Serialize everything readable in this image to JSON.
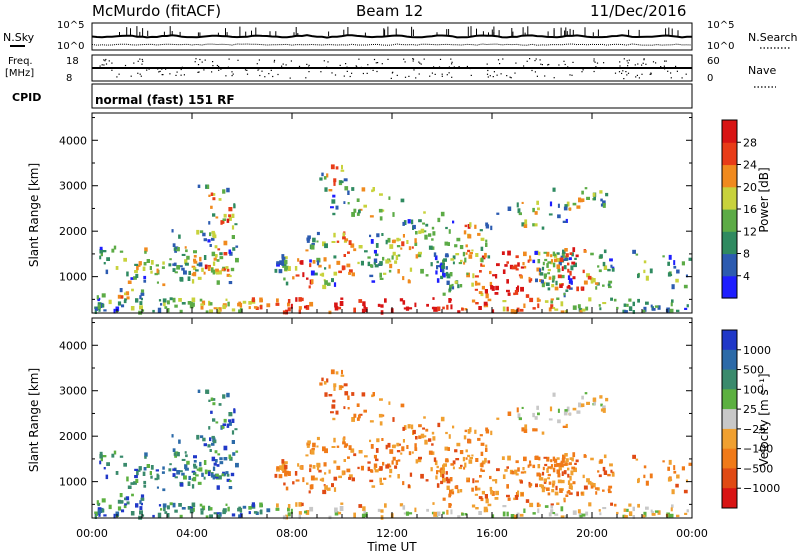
{
  "header": {
    "station": "McMurdo (fitACF)",
    "beam": "Beam 12",
    "date": "11/Dec/2016"
  },
  "noise_panel": {
    "left_label": "N.Sky",
    "right_label": "N.Search",
    "top_tick": "10^5",
    "bottom_tick": "10^0"
  },
  "freq_panel": {
    "label_line1": "Freq.",
    "label_line2": "[MHz]",
    "top_tick": "18",
    "bottom_tick": "8",
    "right_label": "Nave",
    "right_top_tick": "60",
    "right_bottom_tick": "0"
  },
  "cpid_panel": {
    "label": "CPID",
    "text": "normal (fast) 151 RF"
  },
  "chart_data": [
    {
      "type": "heatmap",
      "name": "power",
      "xlabel": "Time UT",
      "ylabel": "Slant Range [km]",
      "ylim": [
        200,
        4600
      ],
      "y_ticks": [
        1000,
        2000,
        3000,
        4000
      ],
      "x_ticks": [
        "00:00",
        "04:00",
        "08:00",
        "12:00",
        "16:00",
        "20:00",
        "00:00"
      ],
      "colorbar_label": "Power [dB]",
      "colorbar_ticks": [
        "4",
        "8",
        "12",
        "16",
        "20",
        "24",
        "28"
      ],
      "colorbar_colors": [
        "#1e1eff",
        "#2c5bb0",
        "#2f8a60",
        "#5cab46",
        "#c8d23c",
        "#f08a1e",
        "#e83c18",
        "#d81414"
      ]
    },
    {
      "type": "heatmap",
      "name": "velocity",
      "xlabel": "Time UT",
      "ylabel": "Slant Range [km]",
      "ylim": [
        200,
        4600
      ],
      "y_ticks": [
        1000,
        2000,
        3000,
        4000
      ],
      "x_ticks": [
        "00:00",
        "04:00",
        "08:00",
        "12:00",
        "16:00",
        "20:00",
        "00:00"
      ],
      "colorbar_label": "Velocity [m s⁻¹]",
      "colorbar_ticks": [
        "1000",
        "500",
        "100",
        "25",
        "−25",
        "−100",
        "−500",
        "−1000"
      ],
      "colorbar_colors": [
        "#2038c8",
        "#2c6aa8",
        "#3a8a6c",
        "#5cb040",
        "#c8c8c8",
        "#f0a030",
        "#f07a18",
        "#e04a14",
        "#d81414"
      ]
    }
  ]
}
